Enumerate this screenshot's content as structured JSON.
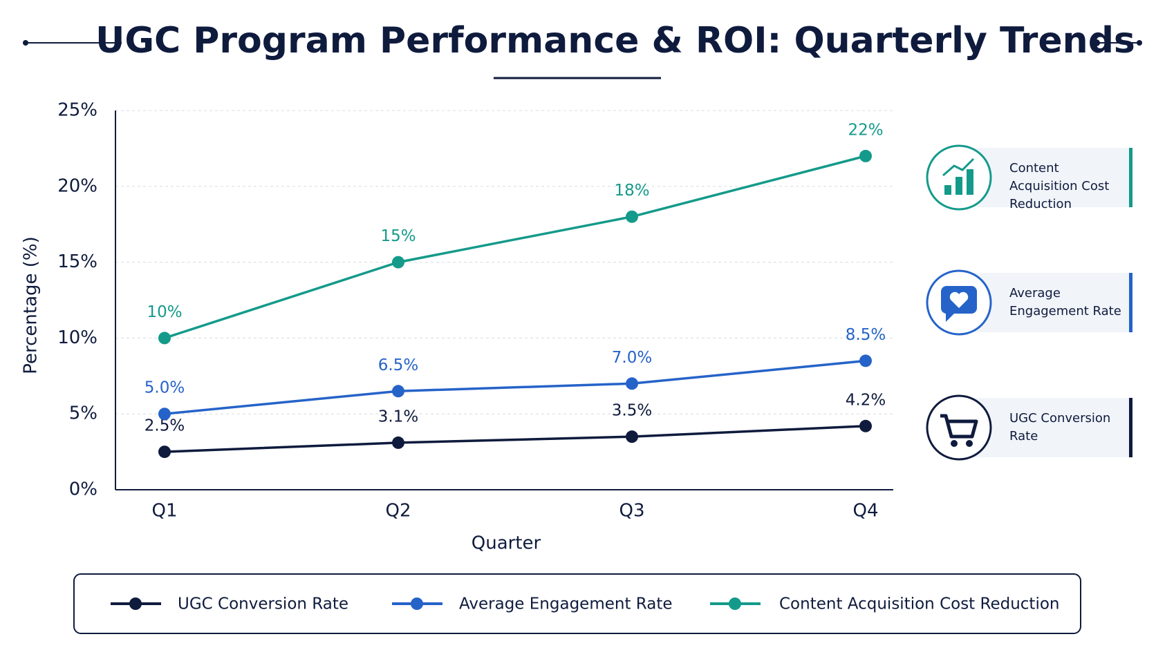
{
  "chart_data": {
    "type": "line",
    "title": "UGC Program Performance & ROI: Quarterly Trends",
    "x_label": "Quarter",
    "y_label": "Percentage (%)",
    "categories": [
      "Q1",
      "Q2",
      "Q3",
      "Q4"
    ],
    "series": [
      {
        "name": "UGC Conversion Rate",
        "color": "#0f1b3d",
        "values": [
          2.5,
          3.1,
          3.5,
          4.2
        ],
        "value_labels": [
          "2.5%",
          "3.1%",
          "3.5%",
          "4.2%"
        ]
      },
      {
        "name": "Average Engagement Rate",
        "color": "#2563c9",
        "values": [
          5.0,
          6.5,
          7.0,
          8.5
        ],
        "value_labels": [
          "5.0%",
          "6.5%",
          "7.0%",
          "8.5%"
        ]
      },
      {
        "name": "Content Acquisition Cost Reduction",
        "color": "#149a8a",
        "values": [
          10,
          15,
          18,
          22
        ],
        "value_labels": [
          "10%",
          "15%",
          "18%",
          "22%"
        ]
      }
    ],
    "ylim": [
      0,
      25
    ],
    "yticks": [
      {
        "value": 0,
        "label": "0%"
      },
      {
        "value": 5,
        "label": "5%"
      },
      {
        "value": 10,
        "label": "10%"
      },
      {
        "value": 15,
        "label": "15%"
      },
      {
        "value": 20,
        "label": "20%"
      },
      {
        "value": 25,
        "label": "25%"
      }
    ],
    "grid": true,
    "legend": "bottom"
  }
}
